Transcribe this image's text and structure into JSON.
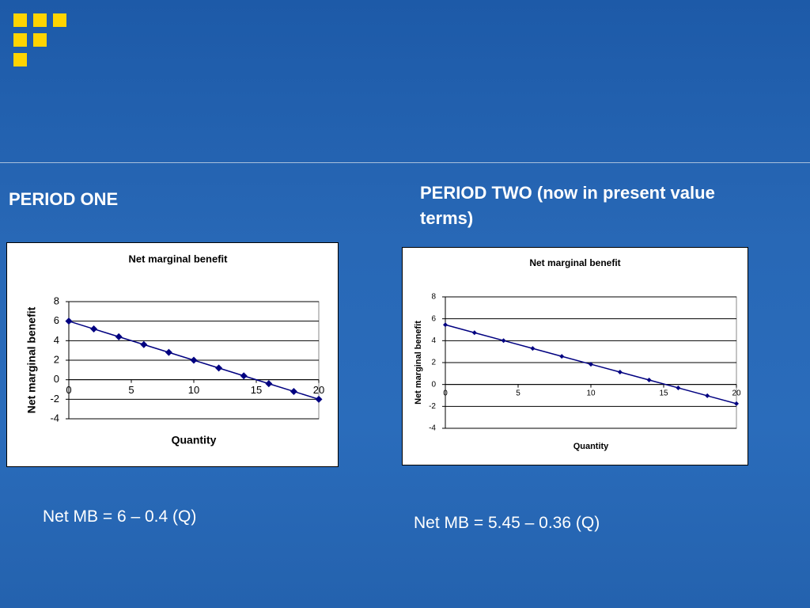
{
  "slide": {
    "left_heading": "PERIOD ONE",
    "right_heading": "PERIOD TWO (now in present value terms)",
    "left_formula": "Net MB = 6 – 0.4 (Q)",
    "right_formula": "Net MB = 5.45 – 0.36 (Q)"
  },
  "chart_data": [
    {
      "type": "line",
      "title": "Net marginal benefit",
      "x_label": "Quantity",
      "y_label": "Net marginal benefit",
      "x": [
        0,
        2,
        4,
        6,
        8,
        10,
        12,
        14,
        16,
        18,
        20
      ],
      "values": [
        6,
        5.2,
        4.4,
        3.6,
        2.8,
        2,
        1.2,
        0.4,
        -0.4,
        -1.2,
        -2
      ],
      "color": "#000080",
      "xlim": [
        0,
        20
      ],
      "xticks": [
        0,
        5,
        10,
        15,
        20
      ],
      "ylim": [
        -4,
        8
      ],
      "yticks": [
        -4,
        -2,
        0,
        2,
        4,
        6,
        8
      ],
      "grid": true
    },
    {
      "type": "line",
      "title": "Net marginal benefit",
      "x_label": "Quantity",
      "y_label": "Net marginal benefit",
      "x": [
        0,
        2,
        4,
        6,
        8,
        10,
        12,
        14,
        16,
        18,
        20
      ],
      "values": [
        5.45,
        4.73,
        4.01,
        3.29,
        2.57,
        1.85,
        1.13,
        0.41,
        -0.31,
        -1.03,
        -1.75
      ],
      "color": "#000080",
      "xlim": [
        0,
        20
      ],
      "xticks": [
        0,
        5,
        10,
        15,
        20
      ],
      "ylim": [
        -4,
        8
      ],
      "yticks": [
        -4,
        -2,
        0,
        2,
        4,
        6,
        8
      ],
      "grid": true
    }
  ]
}
